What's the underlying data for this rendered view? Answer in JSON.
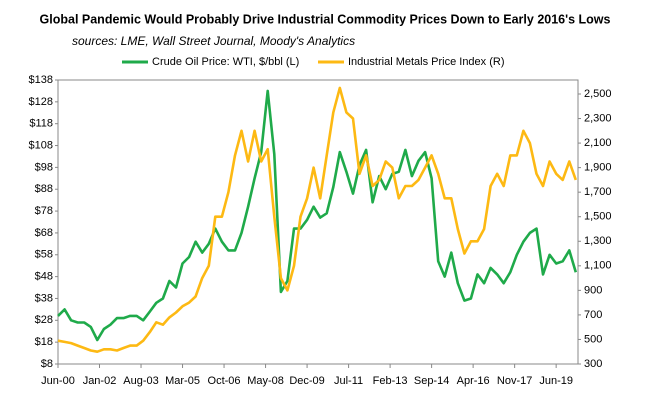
{
  "chart_data": {
    "type": "line",
    "title": "Global Pandemic Would Probably Drive Industrial Commodity Prices Down to Early 2016's Lows",
    "subtitle": "sources: LME, Wall Street Journal, Moody's Analytics",
    "x": [
      "Jun-00",
      "Sep-00",
      "Dec-00",
      "Mar-01",
      "Jun-01",
      "Sep-01",
      "Dec-01",
      "Mar-02",
      "Jun-02",
      "Sep-02",
      "Dec-02",
      "Mar-03",
      "Jun-03",
      "Sep-03",
      "Dec-03",
      "Mar-04",
      "Jun-04",
      "Sep-04",
      "Dec-04",
      "Mar-05",
      "Jun-05",
      "Sep-05",
      "Dec-05",
      "Mar-06",
      "Jun-06",
      "Sep-06",
      "Dec-06",
      "Mar-07",
      "Jun-07",
      "Sep-07",
      "Dec-07",
      "Mar-08",
      "Jun-08",
      "Sep-08",
      "Dec-08",
      "Mar-09",
      "Jun-09",
      "Sep-09",
      "Dec-09",
      "Mar-10",
      "Jun-10",
      "Sep-10",
      "Dec-10",
      "Mar-11",
      "Jun-11",
      "Sep-11",
      "Dec-11",
      "Mar-12",
      "Jun-12",
      "Sep-12",
      "Dec-12",
      "Mar-13",
      "Jun-13",
      "Sep-13",
      "Dec-13",
      "Mar-14",
      "Jun-14",
      "Sep-14",
      "Dec-14",
      "Mar-15",
      "Jun-15",
      "Sep-15",
      "Dec-15",
      "Mar-16",
      "Jun-16",
      "Sep-16",
      "Dec-16",
      "Mar-17",
      "Jun-17",
      "Sep-17",
      "Dec-17",
      "Mar-18",
      "Jun-18",
      "Sep-18",
      "Dec-18",
      "Mar-19",
      "Jun-19",
      "Sep-19",
      "Dec-19",
      "Mar-20"
    ],
    "xlim": [
      "Jun-00",
      "Apr-20"
    ],
    "xticks": [
      "Jun-00",
      "Jan-02",
      "Aug-03",
      "Mar-05",
      "Oct-06",
      "May-08",
      "Dec-09",
      "Jul-11",
      "Feb-13",
      "Sep-14",
      "Apr-16",
      "Nov-17",
      "Jun-19"
    ],
    "series": [
      {
        "name": "Crude Oil Price: WTI, $/bbl (L)",
        "color": "#1faa4a",
        "values": [
          30,
          33,
          28,
          27,
          27,
          25,
          19,
          24,
          26,
          29,
          29,
          30,
          30,
          28,
          32,
          36,
          38,
          46,
          43,
          54,
          57,
          64,
          59,
          63,
          70,
          64,
          60,
          60,
          68,
          80,
          93,
          105,
          133,
          104,
          41,
          46,
          70,
          70,
          74,
          80,
          75,
          77,
          89,
          105,
          96,
          86,
          99,
          106,
          82,
          94,
          88,
          95,
          96,
          106,
          94,
          101,
          105,
          93,
          55,
          48,
          59,
          45,
          37,
          38,
          49,
          45,
          52,
          49,
          45,
          50,
          58,
          64,
          68,
          70,
          49,
          58,
          54,
          55,
          60,
          50
        ]
      },
      {
        "name": "Industrial Metals Price Index (R)",
        "color": "#fdb913",
        "axis": "y2",
        "values": [
          490,
          480,
          470,
          450,
          430,
          410,
          400,
          420,
          420,
          410,
          430,
          450,
          450,
          490,
          560,
          640,
          620,
          680,
          720,
          770,
          800,
          850,
          1000,
          1100,
          1500,
          1500,
          1700,
          2000,
          2200,
          1950,
          2200,
          1950,
          2050,
          1500,
          1000,
          900,
          1100,
          1500,
          1650,
          1900,
          1650,
          2000,
          2350,
          2550,
          2350,
          2300,
          1850,
          2000,
          1750,
          1800,
          1950,
          1900,
          1650,
          1750,
          1750,
          1800,
          1900,
          2000,
          1850,
          1650,
          1650,
          1400,
          1200,
          1300,
          1300,
          1400,
          1750,
          1850,
          1750,
          2000,
          2000,
          2200,
          2100,
          1850,
          1750,
          1950,
          1850,
          1800,
          1950,
          1800
        ]
      }
    ],
    "ylim": [
      8,
      138
    ],
    "yticks": [
      {
        "value": 8,
        "label": "$8"
      },
      {
        "value": 18,
        "label": "$18"
      },
      {
        "value": 28,
        "label": "$28"
      },
      {
        "value": 38,
        "label": "$38"
      },
      {
        "value": 48,
        "label": "$48"
      },
      {
        "value": 58,
        "label": "$58"
      },
      {
        "value": 68,
        "label": "$68"
      },
      {
        "value": 78,
        "label": "$78"
      },
      {
        "value": 88,
        "label": "$88"
      },
      {
        "value": 98,
        "label": "$98"
      },
      {
        "value": 108,
        "label": "$108"
      },
      {
        "value": 118,
        "label": "$118"
      },
      {
        "value": 128,
        "label": "$128"
      },
      {
        "value": 138,
        "label": "$138"
      }
    ],
    "y2lim": [
      300,
      2614
    ],
    "y2ticks": [
      300,
      500,
      700,
      900,
      {
        "value": 1100,
        "label": "1,100"
      },
      {
        "value": 1300,
        "label": "1,300"
      },
      {
        "value": 1500,
        "label": "1,500"
      },
      {
        "value": 1700,
        "label": "1,700"
      },
      {
        "value": 1900,
        "label": "1,900"
      },
      {
        "value": 2100,
        "label": "2,100"
      },
      {
        "value": 2300,
        "label": "2,300"
      },
      {
        "value": 2500,
        "label": "2,500"
      }
    ],
    "legend": "top"
  }
}
